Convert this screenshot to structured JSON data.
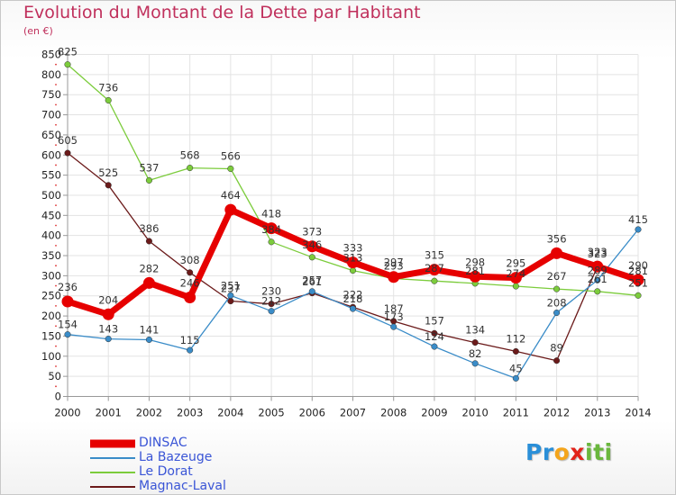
{
  "title": "Evolution du Montant de la Dette par Habitant",
  "unit": "(en €)",
  "logo": {
    "text": "Proxiti",
    "letters": [
      "P",
      "r",
      "o",
      "x",
      "i",
      "t",
      "i"
    ],
    "colors": [
      "#2a8fd8",
      "#2a8fd8",
      "#f4a51c",
      "#e2231a",
      "#6ab73d",
      "#6ab73d",
      "#6ab73d"
    ]
  },
  "chart_data": {
    "type": "line",
    "title": "Evolution du Montant de la Dette par Habitant",
    "ylabel": "(en €)",
    "xlabel": "",
    "x": [
      "2000",
      "2001",
      "2002",
      "2003",
      "2004",
      "2005",
      "2006",
      "2007",
      "2008",
      "2009",
      "2010",
      "2011",
      "2012",
      "2013",
      "2014"
    ],
    "ylim": [
      0,
      850
    ],
    "yticks": [
      0,
      50,
      100,
      150,
      200,
      250,
      300,
      350,
      400,
      450,
      500,
      550,
      600,
      650,
      700,
      750,
      800,
      850
    ],
    "grid": true,
    "legend_position": "bottom-left",
    "series": [
      {
        "name": "DINSAC",
        "color": "#e60000",
        "values": [
          236,
          204,
          282,
          246,
          464,
          418,
          373,
          333,
          297,
          315,
          298,
          295,
          356,
          323,
          290
        ]
      },
      {
        "name": "La Bazeuge",
        "color": "#3a8cc8",
        "values": [
          154,
          143,
          141,
          115,
          251,
          212,
          261,
          218,
          173,
          124,
          82,
          45,
          208,
          289,
          415
        ]
      },
      {
        "name": "Le Dorat",
        "color": "#7ccc3c",
        "values": [
          825,
          736,
          537,
          568,
          566,
          384,
          346,
          313,
          293,
          287,
          281,
          274,
          267,
          261,
          251
        ]
      },
      {
        "name": "Magnac-Laval",
        "color": "#6b1a1a",
        "values": [
          605,
          525,
          386,
          308,
          237,
          230,
          257,
          222,
          187,
          157,
          134,
          112,
          89,
          323,
          281
        ]
      }
    ]
  }
}
